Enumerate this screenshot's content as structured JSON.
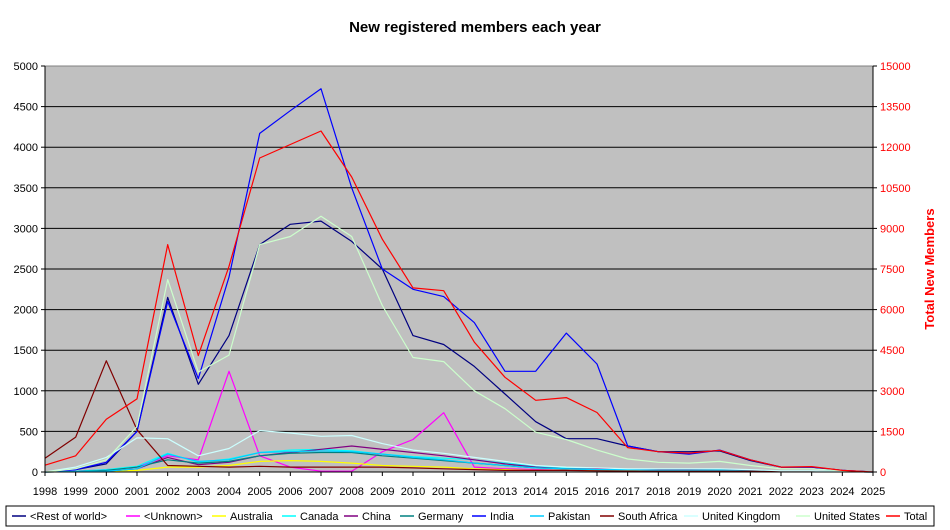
{
  "chart_data": {
    "type": "line",
    "title": "New registered members each year",
    "ylabel": "",
    "ylabel_right": "Total New Members",
    "xlabel": "",
    "x": [
      "1998",
      "1999",
      "2000",
      "2001",
      "2002",
      "2003",
      "2004",
      "2005",
      "2006",
      "2007",
      "2008",
      "2009",
      "2010",
      "2011",
      "2012",
      "2013",
      "2014",
      "2015",
      "2016",
      "2017",
      "2018",
      "2019",
      "2020",
      "2021",
      "2022",
      "2023",
      "2024",
      "2025"
    ],
    "ylim": [
      0,
      5000
    ],
    "yticks": [
      "0",
      "500",
      "1000",
      "1500",
      "2000",
      "2500",
      "3000",
      "3500",
      "4000",
      "4500",
      "5000"
    ],
    "ylim_right": [
      0,
      15000
    ],
    "yticks_right": [
      "0",
      "1500",
      "3000",
      "4500",
      "6000",
      "7500",
      "9000",
      "10500",
      "12000",
      "13500",
      "15000"
    ],
    "grid": true,
    "plot_background": "#c0c0c0",
    "legend_position": "bottom",
    "series": [
      {
        "name": "<Rest of world>",
        "color": "#000080",
        "axis": "left",
        "values": [
          0,
          30,
          100,
          500,
          2150,
          1080,
          1680,
          2800,
          3050,
          3090,
          2840,
          2500,
          1680,
          1570,
          1300,
          960,
          620,
          410,
          410,
          320,
          250,
          250,
          260,
          140,
          60,
          60,
          20,
          0
        ]
      },
      {
        "name": "<Unknown>",
        "color": "#ff00ff",
        "axis": "left",
        "values": [
          0,
          10,
          30,
          60,
          200,
          150,
          1240,
          200,
          60,
          10,
          10,
          250,
          400,
          730,
          60,
          40,
          30,
          20,
          20,
          10,
          10,
          10,
          10,
          10,
          10,
          10,
          5,
          0
        ]
      },
      {
        "name": "Australia",
        "color": "#ffff00",
        "axis": "left",
        "values": [
          0,
          5,
          10,
          20,
          60,
          60,
          80,
          130,
          140,
          130,
          110,
          80,
          70,
          60,
          40,
          30,
          20,
          20,
          20,
          15,
          10,
          10,
          10,
          10,
          5,
          5,
          5,
          0
        ]
      },
      {
        "name": "Canada",
        "color": "#00ffff",
        "axis": "left",
        "values": [
          0,
          10,
          30,
          70,
          230,
          120,
          160,
          240,
          270,
          280,
          260,
          220,
          190,
          170,
          150,
          110,
          70,
          50,
          40,
          30,
          30,
          30,
          30,
          20,
          10,
          10,
          5,
          0
        ]
      },
      {
        "name": "China",
        "color": "#800080",
        "axis": "left",
        "values": [
          0,
          5,
          10,
          40,
          180,
          90,
          120,
          200,
          240,
          280,
          320,
          280,
          240,
          200,
          150,
          100,
          60,
          40,
          40,
          30,
          30,
          30,
          20,
          20,
          10,
          10,
          5,
          0
        ]
      },
      {
        "name": "Germany",
        "color": "#008080",
        "axis": "left",
        "values": [
          0,
          5,
          20,
          60,
          150,
          110,
          130,
          200,
          230,
          240,
          240,
          200,
          170,
          140,
          110,
          80,
          50,
          40,
          30,
          30,
          20,
          20,
          20,
          15,
          10,
          10,
          5,
          0
        ]
      },
      {
        "name": "India",
        "color": "#0000ff",
        "axis": "left",
        "values": [
          0,
          30,
          120,
          500,
          2100,
          1150,
          2400,
          4170,
          4450,
          4720,
          3500,
          2500,
          2250,
          2160,
          1840,
          1240,
          1240,
          1710,
          1330,
          320,
          250,
          220,
          270,
          150,
          60,
          60,
          20,
          0
        ]
      },
      {
        "name": "Pakistan",
        "color": "#00ccff",
        "axis": "left",
        "values": [
          0,
          5,
          10,
          40,
          220,
          130,
          150,
          240,
          250,
          260,
          250,
          220,
          180,
          150,
          110,
          80,
          50,
          40,
          30,
          30,
          20,
          20,
          20,
          15,
          10,
          10,
          5,
          0
        ]
      },
      {
        "name": "South Africa",
        "color": "#800000",
        "axis": "left",
        "values": [
          170,
          430,
          1370,
          520,
          80,
          70,
          60,
          70,
          60,
          60,
          60,
          60,
          50,
          40,
          30,
          20,
          20,
          20,
          15,
          10,
          10,
          10,
          10,
          10,
          5,
          5,
          5,
          0
        ]
      },
      {
        "name": "United Kingdom",
        "color": "#ccffff",
        "axis": "left",
        "values": [
          0,
          60,
          180,
          420,
          410,
          200,
          290,
          510,
          480,
          440,
          450,
          350,
          270,
          230,
          180,
          130,
          80,
          60,
          50,
          40,
          40,
          40,
          40,
          30,
          15,
          15,
          5,
          0
        ]
      },
      {
        "name": "United States",
        "color": "#ccffcc",
        "axis": "left",
        "values": [
          0,
          40,
          150,
          560,
          2370,
          1230,
          1440,
          2800,
          2900,
          3150,
          2900,
          2050,
          1410,
          1360,
          1000,
          780,
          490,
          400,
          270,
          160,
          120,
          110,
          130,
          80,
          40,
          40,
          15,
          0
        ]
      },
      {
        "name": "Total",
        "color": "#ff0000",
        "axis": "right",
        "values": [
          250,
          600,
          1950,
          2700,
          8400,
          4300,
          7600,
          11600,
          12100,
          12600,
          10900,
          8600,
          6800,
          6700,
          4800,
          3500,
          2650,
          2750,
          2200,
          900,
          750,
          700,
          800,
          450,
          180,
          200,
          60,
          0
        ]
      }
    ]
  }
}
